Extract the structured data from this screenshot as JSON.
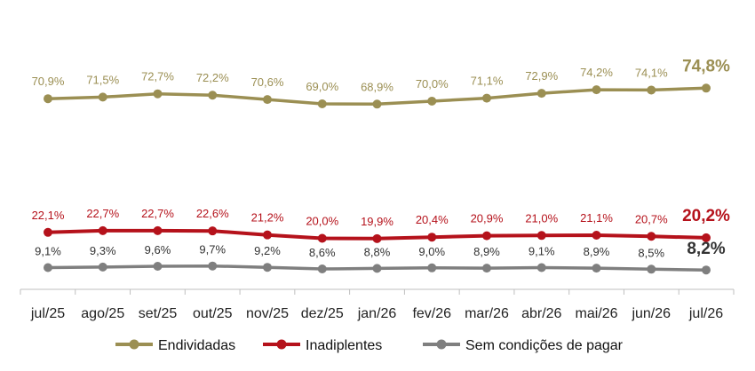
{
  "chart_data": {
    "type": "line",
    "categories": [
      "jul/25",
      "ago/25",
      "set/25",
      "out/25",
      "nov/25",
      "dez/25",
      "jan/26",
      "fev/26",
      "mar/26",
      "abr/26",
      "mai/26",
      "jun/26",
      "jul/26"
    ],
    "series": [
      {
        "name": "Endividadas",
        "color": "#9b8f53",
        "values": [
          70.9,
          71.5,
          72.7,
          72.2,
          70.6,
          69.0,
          68.9,
          70.0,
          71.1,
          72.9,
          74.2,
          74.1,
          74.8
        ],
        "labels": [
          "70,9%",
          "71,5%",
          "72,7%",
          "72,2%",
          "70,6%",
          "69,0%",
          "68,9%",
          "70,0%",
          "71,1%",
          "72,9%",
          "74,2%",
          "74,1%",
          "74,8%"
        ]
      },
      {
        "name": "Inadiplentes",
        "color": "#b5121b",
        "values": [
          22.1,
          22.7,
          22.7,
          22.6,
          21.2,
          20.0,
          19.9,
          20.4,
          20.9,
          21.0,
          21.1,
          20.7,
          20.2
        ],
        "labels": [
          "22,1%",
          "22,7%",
          "22,7%",
          "22,6%",
          "21,2%",
          "20,0%",
          "19,9%",
          "20,4%",
          "20,9%",
          "21,0%",
          "21,1%",
          "20,7%",
          "20,2%"
        ]
      },
      {
        "name": "Sem condições de pagar",
        "color": "#7f7f7f",
        "values": [
          9.1,
          9.3,
          9.6,
          9.7,
          9.2,
          8.6,
          8.8,
          9.0,
          8.9,
          9.1,
          8.9,
          8.5,
          8.2
        ],
        "labels": [
          "9,1%",
          "9,3%",
          "9,6%",
          "9,7%",
          "9,2%",
          "8,6%",
          "8,8%",
          "9,0%",
          "8,9%",
          "9,1%",
          "8,9%",
          "8,5%",
          "8,2%"
        ]
      }
    ],
    "title": "",
    "xlabel": "",
    "ylabel": "",
    "legend_position": "bottom",
    "grid": false
  }
}
